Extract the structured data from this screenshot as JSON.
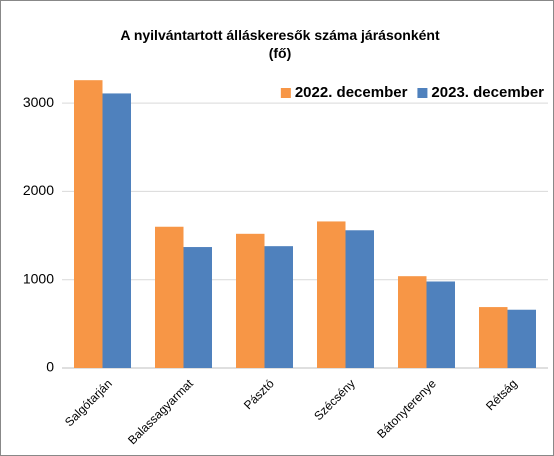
{
  "chart_data": {
    "type": "bar",
    "title": "A nyilvántartott álláskeresők száma  járásonként\n(fő)",
    "categories": [
      "Salgótarján",
      "Balassagyarmat",
      "Pásztó",
      "Szécsény",
      "Bátonyterenye",
      "Rétság"
    ],
    "series": [
      {
        "name": "2022. december",
        "color": "#f79646",
        "values": [
          3260,
          1600,
          1520,
          1660,
          1040,
          690
        ]
      },
      {
        "name": "2023. december",
        "color": "#4f81bd",
        "values": [
          3110,
          1370,
          1380,
          1560,
          980,
          660
        ]
      }
    ],
    "ylim": [
      0,
      3500
    ],
    "yticks": [
      0,
      1000,
      2000,
      3000
    ],
    "grid": true,
    "legend": "top-right"
  }
}
